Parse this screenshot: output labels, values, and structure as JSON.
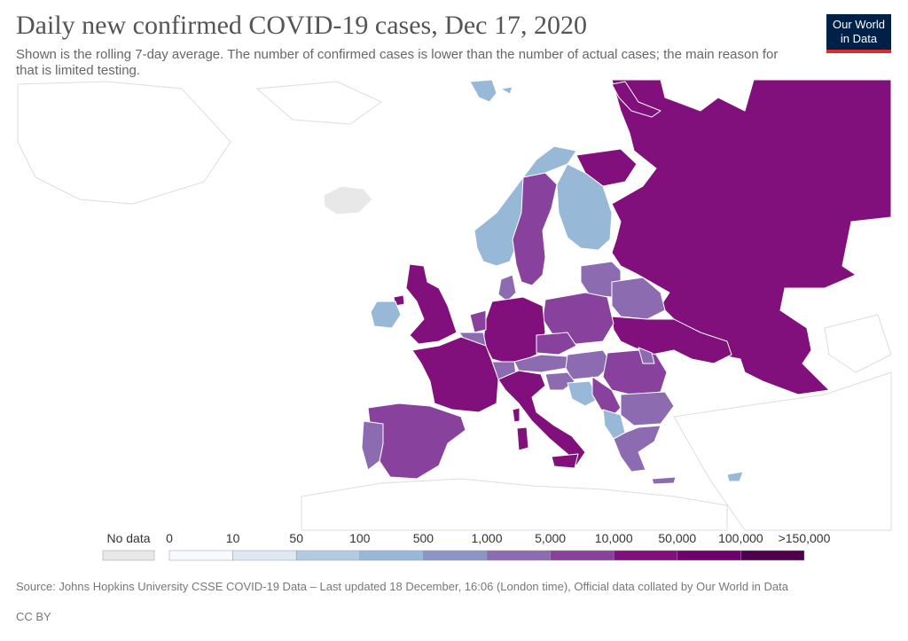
{
  "header": {
    "title": "Daily new confirmed COVID-19 cases, Dec 17, 2020",
    "subtitle": "Shown is the rolling 7-day average. The number of confirmed cases is lower than the number of actual cases; the main reason for that is limited testing."
  },
  "logo": {
    "line1": "Our World",
    "line2": "in Data",
    "bg_color": "#002147",
    "accent_color": "#dc2c2c"
  },
  "legend": {
    "no_data_label": "No data",
    "no_data_color": "#e8e8e8",
    "bins": [
      {
        "label": "0",
        "color": "#f7fbff"
      },
      {
        "label": "10",
        "color": "#dde8f2"
      },
      {
        "label": "50",
        "color": "#b3cbe2"
      },
      {
        "label": "100",
        "color": "#98b8d8"
      },
      {
        "label": "500",
        "color": "#8c96c6"
      },
      {
        "label": "1,000",
        "color": "#8c6bb1"
      },
      {
        "label": "5,000",
        "color": "#88419d"
      },
      {
        "label": "10,000",
        "color": "#810f7c"
      },
      {
        "label": "50,000",
        "color": "#6e016b"
      },
      {
        "label": "100,000",
        "color": "#4d004b"
      }
    ],
    "end_label": ">150,000"
  },
  "regions": {
    "russia": "#810f7c",
    "ukraine": "#810f7c",
    "france": "#810f7c",
    "uk": "#810f7c",
    "germany": "#810f7c",
    "italy": "#810f7c",
    "turkey": "#810f7c",
    "poland": "#88419d",
    "spain": "#88419d",
    "sweden": "#88419d",
    "romania": "#88419d",
    "norway": "#98b8d8",
    "finland": "#98b8d8",
    "ireland": "#98b8d8",
    "baltics": "#8c6bb1",
    "belarus": "#8c6bb1",
    "portugal": "#8c6bb1",
    "netherlands": "#88419d",
    "belgium": "#8c6bb1",
    "denmark": "#8c6bb1",
    "czechia": "#88419d",
    "austria": "#8c6bb1",
    "switzerland": "#8c6bb1",
    "hungary": "#8c6bb1",
    "balkans": "#8c6bb1",
    "bulgaria": "#8c6bb1",
    "greece": "#8c6bb1",
    "serbia": "#88419d",
    "bosnia": "#98b8d8",
    "albania": "#98b8d8",
    "iceland": "#e8e8e8",
    "svalbard": "#98b8d8",
    "cyprus": "#98b8d8",
    "sardinia": "#810f7c",
    "sicily": "#810f7c",
    "corsica": "#810f7c"
  },
  "footer": {
    "source": "Source: Johns Hopkins University CSSE COVID-19 Data – Last updated 18 December, 16:06 (London time), Official data collated by Our World in Data",
    "license": "CC BY"
  }
}
